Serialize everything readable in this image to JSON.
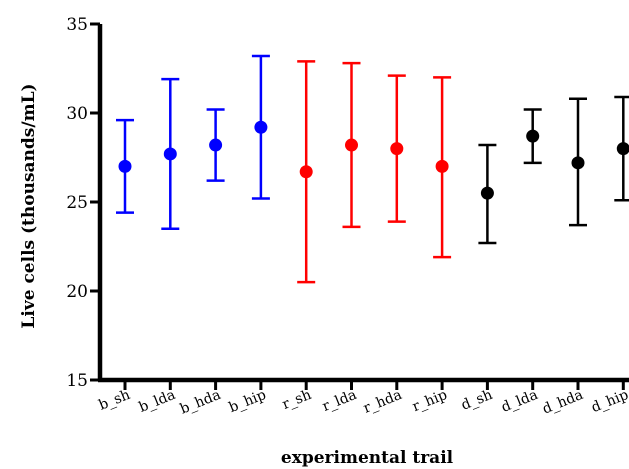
{
  "chart_data": {
    "type": "scatter",
    "xlabel": "experimental trail",
    "ylabel": "Live cells (thousands/mL)",
    "ylim": [
      15,
      35
    ],
    "yticks": [
      15,
      20,
      25,
      30,
      35
    ],
    "grid": false,
    "categories": [
      "b_sh",
      "b_lda",
      "b_hda",
      "b_hip",
      "r_sh",
      "r_lda",
      "r_hda",
      "r_hip",
      "d_sh",
      "d_lda",
      "d_hda",
      "d_hip"
    ],
    "series": [
      {
        "color": "#0000ff",
        "points": [
          {
            "category": "b_sh",
            "mean": 27.0,
            "lower": 24.4,
            "upper": 29.6
          },
          {
            "category": "b_lda",
            "mean": 27.7,
            "lower": 23.5,
            "upper": 31.9
          },
          {
            "category": "b_hda",
            "mean": 28.2,
            "lower": 26.2,
            "upper": 30.2
          },
          {
            "category": "b_hip",
            "mean": 29.2,
            "lower": 25.2,
            "upper": 33.2
          }
        ]
      },
      {
        "color": "#ff0000",
        "points": [
          {
            "category": "r_sh",
            "mean": 26.7,
            "lower": 20.5,
            "upper": 32.9
          },
          {
            "category": "r_lda",
            "mean": 28.2,
            "lower": 23.6,
            "upper": 32.8
          },
          {
            "category": "r_hda",
            "mean": 28.0,
            "lower": 23.9,
            "upper": 32.1
          },
          {
            "category": "r_hip",
            "mean": 27.0,
            "lower": 21.9,
            "upper": 32.0
          }
        ]
      },
      {
        "color": "#000000",
        "points": [
          {
            "category": "d_sh",
            "mean": 25.5,
            "lower": 22.7,
            "upper": 28.2
          },
          {
            "category": "d_lda",
            "mean": 28.7,
            "lower": 27.2,
            "upper": 30.2
          },
          {
            "category": "d_hda",
            "mean": 27.2,
            "lower": 23.7,
            "upper": 30.8
          },
          {
            "category": "d_hip",
            "mean": 28.0,
            "lower": 25.1,
            "upper": 30.9
          }
        ]
      }
    ]
  }
}
